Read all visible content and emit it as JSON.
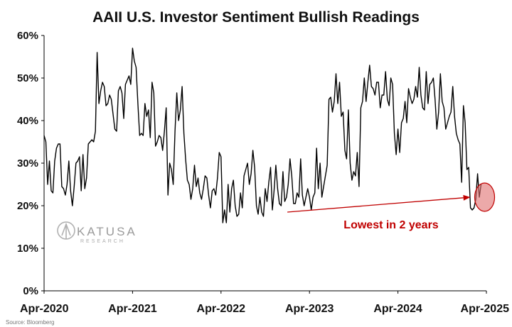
{
  "chart_data": {
    "type": "line",
    "title": "AAII U.S. Investor Sentiment Bullish Readings",
    "xlabel": "",
    "ylabel": "",
    "x_ticks": [
      "Apr-2020",
      "Apr-2021",
      "Apr-2022",
      "Apr-2023",
      "Apr-2024",
      "Apr-2025"
    ],
    "y_ticks": [
      "0%",
      "10%",
      "20%",
      "30%",
      "40%",
      "50%",
      "60%"
    ],
    "ylim": [
      0,
      60
    ],
    "x_range_years": [
      2020.25,
      2025.25
    ],
    "grid": false,
    "legend": "none",
    "series": [
      {
        "color": "#000000",
        "points": [
          [
            2020.25,
            36.5
          ],
          [
            2020.27,
            35
          ],
          [
            2020.29,
            25
          ],
          [
            2020.31,
            30.5
          ],
          [
            2020.33,
            23.5
          ],
          [
            2020.35,
            23
          ],
          [
            2020.37,
            30.5
          ],
          [
            2020.39,
            33.5
          ],
          [
            2020.41,
            34.5
          ],
          [
            2020.43,
            34.5
          ],
          [
            2020.45,
            24.5
          ],
          [
            2020.47,
            24
          ],
          [
            2020.49,
            22.5
          ],
          [
            2020.51,
            25
          ],
          [
            2020.53,
            30.5
          ],
          [
            2020.55,
            23.5
          ],
          [
            2020.57,
            20
          ],
          [
            2020.59,
            24.5
          ],
          [
            2020.61,
            30
          ],
          [
            2020.63,
            30.5
          ],
          [
            2020.65,
            31.5
          ],
          [
            2020.67,
            23.5
          ],
          [
            2020.69,
            32
          ],
          [
            2020.71,
            24
          ],
          [
            2020.73,
            26.5
          ],
          [
            2020.75,
            34.5
          ],
          [
            2020.77,
            35
          ],
          [
            2020.79,
            35.5
          ],
          [
            2020.81,
            35
          ],
          [
            2020.83,
            37.5
          ],
          [
            2020.85,
            56
          ],
          [
            2020.87,
            44
          ],
          [
            2020.89,
            47
          ],
          [
            2020.91,
            49
          ],
          [
            2020.93,
            48
          ],
          [
            2020.95,
            43.5
          ],
          [
            2020.97,
            44
          ],
          [
            2020.99,
            46
          ],
          [
            2021.01,
            45
          ],
          [
            2021.03,
            41.5
          ],
          [
            2021.05,
            38
          ],
          [
            2021.07,
            37.5
          ],
          [
            2021.09,
            47
          ],
          [
            2021.11,
            48
          ],
          [
            2021.13,
            46.5
          ],
          [
            2021.15,
            40.5
          ],
          [
            2021.17,
            48.5
          ],
          [
            2021.19,
            49.5
          ],
          [
            2021.21,
            50.5
          ],
          [
            2021.23,
            48.5
          ],
          [
            2021.25,
            57
          ],
          [
            2021.27,
            54
          ],
          [
            2021.29,
            52.5
          ],
          [
            2021.31,
            44
          ],
          [
            2021.33,
            36.5
          ],
          [
            2021.35,
            37
          ],
          [
            2021.37,
            36.5
          ],
          [
            2021.39,
            44
          ],
          [
            2021.41,
            41
          ],
          [
            2021.43,
            42.5
          ],
          [
            2021.45,
            36
          ],
          [
            2021.47,
            49
          ],
          [
            2021.49,
            46.5
          ],
          [
            2021.51,
            34
          ],
          [
            2021.53,
            35
          ],
          [
            2021.55,
            36.5
          ],
          [
            2021.57,
            36
          ],
          [
            2021.59,
            33
          ],
          [
            2021.61,
            37.5
          ],
          [
            2021.63,
            43
          ],
          [
            2021.65,
            22.5
          ],
          [
            2021.67,
            30
          ],
          [
            2021.69,
            28.5
          ],
          [
            2021.71,
            25
          ],
          [
            2021.73,
            37.5
          ],
          [
            2021.75,
            46.5
          ],
          [
            2021.77,
            40
          ],
          [
            2021.79,
            42.5
          ],
          [
            2021.81,
            48
          ],
          [
            2021.83,
            37
          ],
          [
            2021.85,
            31
          ],
          [
            2021.87,
            26
          ],
          [
            2021.89,
            25
          ],
          [
            2021.91,
            21.5
          ],
          [
            2021.93,
            24
          ],
          [
            2021.95,
            29.5
          ],
          [
            2021.97,
            24.5
          ],
          [
            2021.99,
            26.5
          ],
          [
            2022.01,
            23
          ],
          [
            2022.03,
            21.5
          ],
          [
            2022.05,
            24
          ],
          [
            2022.07,
            27
          ],
          [
            2022.09,
            26.5
          ],
          [
            2022.11,
            22.5
          ],
          [
            2022.13,
            19.5
          ],
          [
            2022.15,
            23.5
          ],
          [
            2022.17,
            24
          ],
          [
            2022.19,
            22.5
          ],
          [
            2022.21,
            26.5
          ],
          [
            2022.23,
            32.5
          ],
          [
            2022.25,
            31.5
          ],
          [
            2022.27,
            16
          ],
          [
            2022.29,
            19
          ],
          [
            2022.31,
            16
          ],
          [
            2022.33,
            25
          ],
          [
            2022.35,
            18.5
          ],
          [
            2022.37,
            24
          ],
          [
            2022.39,
            26
          ],
          [
            2022.41,
            20
          ],
          [
            2022.43,
            17.5
          ],
          [
            2022.45,
            18
          ],
          [
            2022.47,
            23
          ],
          [
            2022.49,
            19.5
          ],
          [
            2022.51,
            27
          ],
          [
            2022.53,
            28.5
          ],
          [
            2022.55,
            30
          ],
          [
            2022.57,
            25
          ],
          [
            2022.59,
            27.5
          ],
          [
            2022.61,
            33
          ],
          [
            2022.63,
            29
          ],
          [
            2022.65,
            20
          ],
          [
            2022.67,
            18
          ],
          [
            2022.69,
            22
          ],
          [
            2022.71,
            18.5
          ],
          [
            2022.73,
            17.5
          ],
          [
            2022.75,
            24
          ],
          [
            2022.77,
            21
          ],
          [
            2022.79,
            25.5
          ],
          [
            2022.81,
            29
          ],
          [
            2022.83,
            19
          ],
          [
            2022.85,
            23.5
          ],
          [
            2022.87,
            29.5
          ],
          [
            2022.89,
            24
          ],
          [
            2022.91,
            20.5
          ],
          [
            2022.93,
            20
          ],
          [
            2022.95,
            28
          ],
          [
            2022.97,
            21
          ],
          [
            2022.99,
            22
          ],
          [
            2023.01,
            25
          ],
          [
            2023.03,
            31
          ],
          [
            2023.05,
            27
          ],
          [
            2023.07,
            20.5
          ],
          [
            2023.09,
            20.5
          ],
          [
            2023.11,
            23
          ],
          [
            2023.13,
            22
          ],
          [
            2023.15,
            31
          ],
          [
            2023.17,
            22.5
          ],
          [
            2023.19,
            20
          ],
          [
            2023.21,
            22
          ],
          [
            2023.23,
            24
          ],
          [
            2023.25,
            22
          ],
          [
            2023.27,
            19
          ],
          [
            2023.29,
            22
          ],
          [
            2023.31,
            23
          ],
          [
            2023.33,
            33.5
          ],
          [
            2023.35,
            24
          ],
          [
            2023.37,
            30
          ],
          [
            2023.39,
            22
          ],
          [
            2023.41,
            24.5
          ],
          [
            2023.43,
            27
          ],
          [
            2023.45,
            29.5
          ],
          [
            2023.47,
            45
          ],
          [
            2023.49,
            45.5
          ],
          [
            2023.51,
            42
          ],
          [
            2023.53,
            44.5
          ],
          [
            2023.55,
            51
          ],
          [
            2023.57,
            44
          ],
          [
            2023.59,
            49
          ],
          [
            2023.61,
            41
          ],
          [
            2023.63,
            42
          ],
          [
            2023.65,
            33
          ],
          [
            2023.67,
            31
          ],
          [
            2023.69,
            42.5
          ],
          [
            2023.71,
            30
          ],
          [
            2023.73,
            26
          ],
          [
            2023.75,
            28
          ],
          [
            2023.77,
            27
          ],
          [
            2023.79,
            32.5
          ],
          [
            2023.81,
            24.5
          ],
          [
            2023.83,
            43
          ],
          [
            2023.85,
            44.5
          ],
          [
            2023.87,
            50
          ],
          [
            2023.89,
            44.5
          ],
          [
            2023.91,
            49
          ],
          [
            2023.93,
            53
          ],
          [
            2023.95,
            48
          ],
          [
            2023.97,
            47.5
          ],
          [
            2023.99,
            46
          ],
          [
            2024.01,
            49
          ],
          [
            2024.03,
            49
          ],
          [
            2024.05,
            43
          ],
          [
            2024.07,
            46
          ],
          [
            2024.09,
            46
          ],
          [
            2024.11,
            51.5
          ],
          [
            2024.13,
            45
          ],
          [
            2024.15,
            43.5
          ],
          [
            2024.17,
            50
          ],
          [
            2024.19,
            48.5
          ],
          [
            2024.21,
            37
          ],
          [
            2024.23,
            32
          ],
          [
            2024.25,
            38
          ],
          [
            2024.27,
            32.5
          ],
          [
            2024.29,
            39.5
          ],
          [
            2024.31,
            40.5
          ],
          [
            2024.33,
            44.5
          ],
          [
            2024.35,
            39.5
          ],
          [
            2024.37,
            47.5
          ],
          [
            2024.39,
            45.5
          ],
          [
            2024.41,
            44
          ],
          [
            2024.43,
            45
          ],
          [
            2024.45,
            48
          ],
          [
            2024.47,
            45.5
          ],
          [
            2024.49,
            52.5
          ],
          [
            2024.51,
            46
          ],
          [
            2024.53,
            43
          ],
          [
            2024.55,
            42.5
          ],
          [
            2024.57,
            51.5
          ],
          [
            2024.59,
            44
          ],
          [
            2024.61,
            48.5
          ],
          [
            2024.63,
            49
          ],
          [
            2024.65,
            50
          ],
          [
            2024.67,
            45
          ],
          [
            2024.69,
            38
          ],
          [
            2024.71,
            42
          ],
          [
            2024.73,
            51
          ],
          [
            2024.75,
            44.5
          ],
          [
            2024.77,
            43
          ],
          [
            2024.79,
            38
          ],
          [
            2024.81,
            39.5
          ],
          [
            2024.83,
            41
          ],
          [
            2024.85,
            42
          ],
          [
            2024.87,
            48
          ],
          [
            2024.89,
            41
          ],
          [
            2024.91,
            37
          ],
          [
            2024.93,
            35.5
          ],
          [
            2024.95,
            34.5
          ],
          [
            2024.97,
            25.5
          ],
          [
            2024.99,
            43.5
          ],
          [
            2025.01,
            39.5
          ],
          [
            2025.03,
            28.5
          ],
          [
            2025.05,
            29
          ],
          [
            2025.07,
            19.5
          ],
          [
            2025.09,
            19
          ],
          [
            2025.11,
            19.5
          ],
          [
            2025.13,
            21.5
          ],
          [
            2025.15,
            27.5
          ],
          [
            2025.17,
            22
          ],
          [
            2025.19,
            25
          ]
        ]
      }
    ],
    "annotation": {
      "text": "Lowest in 2 years",
      "color": "#c00000",
      "arrow_from": [
        2023.0,
        18.5
      ],
      "arrow_to": [
        2025.07,
        22.0
      ],
      "circle_center": [
        2025.23,
        22.0
      ]
    },
    "source": "Source: Bloomberg",
    "logo": {
      "name": "KATUSA",
      "sub": "RESEARCH",
      "icon": "katusa-logo-icon"
    }
  }
}
